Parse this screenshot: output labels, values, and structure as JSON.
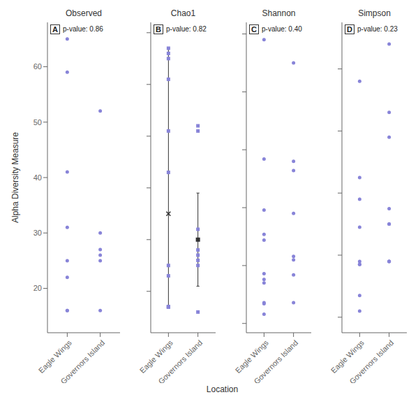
{
  "chart_data": [
    {
      "type": "scatter",
      "title": "Observed",
      "annotations": [
        "A",
        "p-value: 0.86"
      ],
      "ylabel": "Alpha Diversity Measure",
      "xlabel": "Location",
      "categories": [
        "Eagle Wings",
        "Governors Island"
      ],
      "values": [
        [
          65,
          59,
          41,
          31,
          25,
          22,
          16,
          16
        ],
        [
          52,
          30,
          27,
          26,
          25,
          16
        ]
      ],
      "marker": "circle",
      "ylim": [
        12,
        68
      ],
      "yticks": [
        20,
        30,
        40,
        50,
        60
      ]
    },
    {
      "type": "scatter",
      "title": "Chao1",
      "annotations": [
        "B",
        "p-value: 0.82"
      ],
      "categories": [
        "Eagle Wings",
        "Governors Island"
      ],
      "values": [
        [
          67,
          66,
          65,
          61,
          51,
          43,
          25,
          23,
          17,
          17,
          17,
          17
        ],
        [
          52,
          51,
          32,
          30,
          30,
          28,
          27,
          26,
          25,
          16
        ]
      ],
      "marker": "square",
      "error_bars": [
        {
          "mean": 35,
          "low": 17,
          "high": 67,
          "marker": "x"
        },
        {
          "mean": 30,
          "low": 21,
          "high": 39,
          "marker": "square"
        }
      ],
      "ylim": [
        12,
        72
      ],
      "yticks": [
        20,
        30,
        40,
        50,
        60,
        70
      ],
      "tick_labels": "x"
    },
    {
      "type": "scatter",
      "title": "Shannon",
      "annotations": [
        "C",
        "p-value: 0.40"
      ],
      "categories": [
        "Eagle Wings",
        "Governors Island"
      ],
      "values": [
        [
          2.45,
          1.42,
          0.98,
          0.77,
          0.72,
          0.43,
          0.38,
          0.35,
          0.18,
          0.17,
          0.08
        ],
        [
          2.25,
          1.4,
          1.32,
          0.95,
          0.58,
          0.55,
          0.42,
          0.18
        ]
      ],
      "marker": "circle",
      "ylim": [
        -0.08,
        2.6
      ],
      "yticks": [
        0.0,
        0.5,
        1.0,
        1.5,
        2.0,
        2.5
      ],
      "tick_labels": "x"
    },
    {
      "type": "scatter",
      "title": "Simpson",
      "annotations": [
        "D",
        "p-value: 0.23"
      ],
      "categories": [
        "Eagle Wings",
        "Governors Island"
      ],
      "values": [
        [
          0.76,
          0.45,
          0.38,
          0.29,
          0.18,
          0.17,
          0.17,
          0.07,
          0.02
        ],
        [
          0.88,
          0.66,
          0.58,
          0.35,
          0.3,
          0.3,
          0.18,
          0.18,
          0.18
        ]
      ],
      "marker": "circle",
      "ylim": [
        -0.05,
        0.95
      ],
      "yticks": [
        0.0,
        0.2,
        0.4,
        0.6,
        0.8
      ],
      "tick_labels": "x"
    }
  ]
}
